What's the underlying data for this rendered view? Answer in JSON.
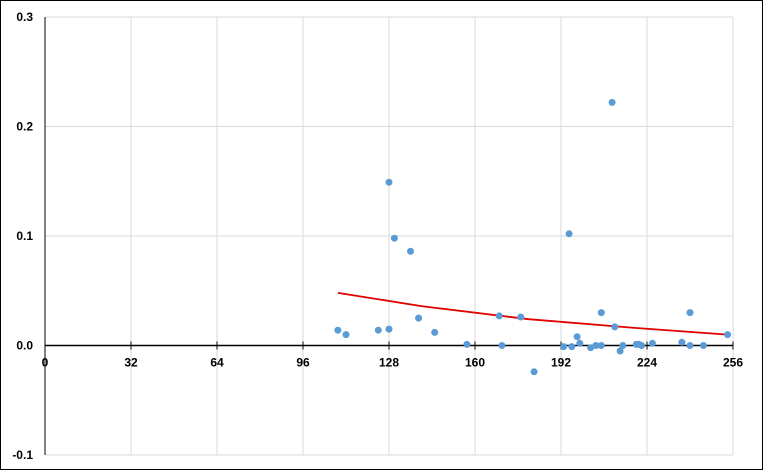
{
  "chart_data": {
    "type": "scatter",
    "title": "",
    "xlabel": "",
    "ylabel": "",
    "xlim": [
      0,
      256
    ],
    "ylim": [
      -0.1,
      0.3
    ],
    "x_ticks": [
      0,
      32,
      64,
      96,
      128,
      160,
      192,
      224,
      256
    ],
    "x_tick_labels": [
      "0",
      "32",
      "64",
      "96",
      "128",
      "160",
      "192",
      "224",
      "256"
    ],
    "y_ticks": [
      -0.1,
      0,
      0.1,
      0.2,
      0.3
    ],
    "y_tick_labels": [
      "-0.1",
      "0.0",
      "0.1",
      "0.2",
      "0.3"
    ],
    "grid": true,
    "legend": "none",
    "series": [
      {
        "values_xy": [
          [
            109,
            0.014
          ],
          [
            112,
            0.01
          ],
          [
            124,
            0.014
          ],
          [
            128,
            0.015
          ],
          [
            128,
            0.149
          ],
          [
            130,
            0.098
          ],
          [
            136,
            0.086
          ],
          [
            139,
            0.025
          ],
          [
            145,
            0.012
          ],
          [
            157,
            0.001
          ],
          [
            169,
            0.027
          ],
          [
            170,
            0.0
          ],
          [
            177,
            0.026
          ],
          [
            182,
            -0.024
          ],
          [
            193,
            -0.001
          ],
          [
            195,
            0.102
          ],
          [
            196,
            -0.001
          ],
          [
            198,
            0.008
          ],
          [
            199,
            0.002
          ],
          [
            203,
            -0.002
          ],
          [
            205,
            0.0
          ],
          [
            207,
            0.03
          ],
          [
            207,
            0.0
          ],
          [
            211,
            0.222
          ],
          [
            212,
            0.017
          ],
          [
            214,
            -0.005
          ],
          [
            215,
            0.0
          ],
          [
            220,
            0.001
          ],
          [
            221,
            0.001
          ],
          [
            222,
            0.0
          ],
          [
            226,
            0.002
          ],
          [
            237,
            0.003
          ],
          [
            240,
            0.03
          ],
          [
            240,
            0.0
          ],
          [
            245,
            0.0
          ],
          [
            254,
            0.01
          ]
        ],
        "color": "#5b9bd5"
      }
    ],
    "trendline": {
      "type": "exponential",
      "x_range": [
        109,
        254
      ],
      "points": [
        [
          109,
          0.048
        ],
        [
          140,
          0.036
        ],
        [
          180,
          0.024
        ],
        [
          220,
          0.016
        ],
        [
          254,
          0.01
        ]
      ],
      "color": "#e00000"
    }
  }
}
